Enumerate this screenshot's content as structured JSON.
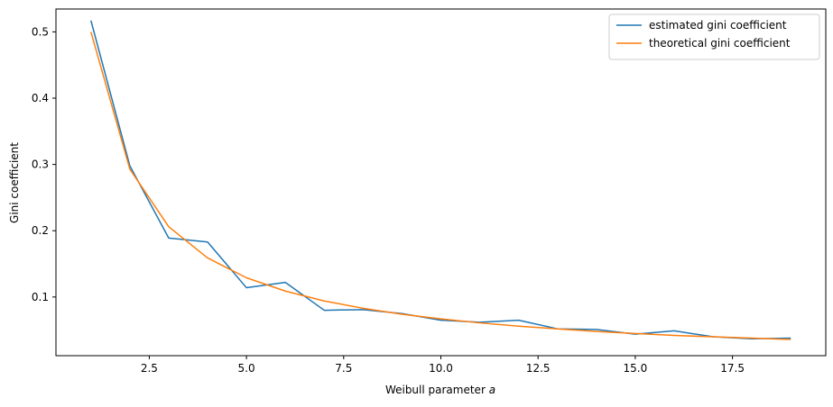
{
  "chart_data": {
    "type": "line",
    "title": "",
    "xlabel": "Weibull parameter ",
    "xlabel_italic": "a",
    "ylabel": "Gini coefficient",
    "xlim": [
      0.1,
      19.9
    ],
    "ylim": [
      0.0115,
      0.5345
    ],
    "x_ticks": [
      2.5,
      5.0,
      7.5,
      10.0,
      12.5,
      15.0,
      17.5
    ],
    "x_tick_labels": [
      "2.5",
      "5.0",
      "7.5",
      "10.0",
      "12.5",
      "15.0",
      "17.5"
    ],
    "y_ticks": [
      0.1,
      0.2,
      0.3,
      0.4,
      0.5
    ],
    "y_tick_labels": [
      "0.1",
      "0.2",
      "0.3",
      "0.4",
      "0.5"
    ],
    "grid": false,
    "legend_position": "top-right",
    "x": [
      1,
      2,
      3,
      4,
      5,
      6,
      7,
      8,
      9,
      10,
      11,
      12,
      13,
      14,
      15,
      16,
      17,
      18,
      19
    ],
    "series": [
      {
        "name": "estimated gini coefficient",
        "color": "#1f77b4",
        "values": [
          0.517,
          0.298,
          0.189,
          0.183,
          0.114,
          0.122,
          0.08,
          0.081,
          0.075,
          0.065,
          0.062,
          0.065,
          0.052,
          0.051,
          0.044,
          0.049,
          0.04,
          0.037,
          0.038
        ]
      },
      {
        "name": "theoretical gini coefficient",
        "color": "#ff7f0e",
        "values": [
          0.5,
          0.293,
          0.206,
          0.159,
          0.129,
          0.109,
          0.094,
          0.083,
          0.074,
          0.067,
          0.061,
          0.056,
          0.052,
          0.048,
          0.045,
          0.042,
          0.04,
          0.038,
          0.036
        ]
      }
    ]
  }
}
